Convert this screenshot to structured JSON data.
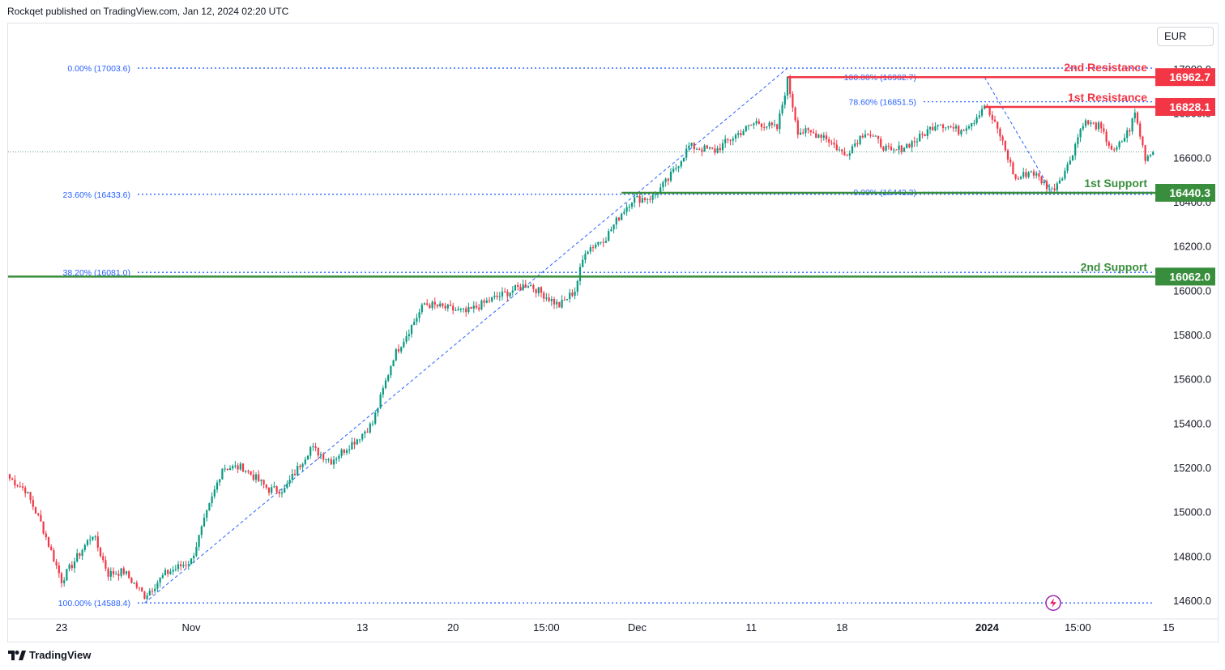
{
  "header": {
    "text": "Rockqet published on TradingView.com, Jan 12, 2024 02:20 UTC"
  },
  "currency_button": {
    "label": "EUR"
  },
  "footer": {
    "brand": "TradingView",
    "logo_icon": "tradingview-logo-icon"
  },
  "chart_data": {
    "type": "candlestick",
    "symbol_currency": "EUR",
    "ylim": [
      14540,
      17080
    ],
    "y_ticks": [
      {
        "value": 14600,
        "label": "14600.0"
      },
      {
        "value": 14800,
        "label": "14800.0"
      },
      {
        "value": 15000,
        "label": "15000.0"
      },
      {
        "value": 15200,
        "label": "15200.0"
      },
      {
        "value": 15400,
        "label": "15400.0"
      },
      {
        "value": 15600,
        "label": "15600.0"
      },
      {
        "value": 15800,
        "label": "15800.0"
      },
      {
        "value": 16000,
        "label": "16000.0"
      },
      {
        "value": 16200,
        "label": "16200.0"
      },
      {
        "value": 16400,
        "label": "16400.0"
      },
      {
        "value": 16600,
        "label": "16600.0"
      },
      {
        "value": 16800,
        "label": "16800.0"
      },
      {
        "value": 17000,
        "label": "17000.0"
      }
    ],
    "x_ticks": [
      {
        "label": "23",
        "bar": 20,
        "bold": false
      },
      {
        "label": "Nov",
        "bar": 70,
        "bold": false
      },
      {
        "label": "13",
        "bar": 136,
        "bold": false
      },
      {
        "label": "20",
        "bar": 171,
        "bold": false
      },
      {
        "label": "15:00",
        "bar": 207,
        "bold": false
      },
      {
        "label": "Dec",
        "bar": 242,
        "bold": false
      },
      {
        "label": "11",
        "bar": 286,
        "bold": false
      },
      {
        "label": "18",
        "bar": 321,
        "bold": false
      },
      {
        "label": "2024",
        "bar": 377,
        "bold": true
      },
      {
        "label": "15:00",
        "bar": 412,
        "bold": false
      },
      {
        "label": "15",
        "bar": 447,
        "bold": false
      }
    ],
    "anchor_points": [
      {
        "bar": 0,
        "price": 15150
      },
      {
        "bar": 6,
        "price": 15100
      },
      {
        "bar": 12,
        "price": 14950
      },
      {
        "bar": 20,
        "price": 14690
      },
      {
        "bar": 24,
        "price": 14760
      },
      {
        "bar": 32,
        "price": 14900
      },
      {
        "bar": 38,
        "price": 14720
      },
      {
        "bar": 44,
        "price": 14730
      },
      {
        "bar": 52,
        "price": 14620
      },
      {
        "bar": 60,
        "price": 14720
      },
      {
        "bar": 70,
        "price": 14780
      },
      {
        "bar": 76,
        "price": 14990
      },
      {
        "bar": 82,
        "price": 15200
      },
      {
        "bar": 90,
        "price": 15200
      },
      {
        "bar": 100,
        "price": 15100
      },
      {
        "bar": 106,
        "price": 15100
      },
      {
        "bar": 116,
        "price": 15290
      },
      {
        "bar": 124,
        "price": 15230
      },
      {
        "bar": 134,
        "price": 15330
      },
      {
        "bar": 140,
        "price": 15400
      },
      {
        "bar": 148,
        "price": 15700
      },
      {
        "bar": 160,
        "price": 15940
      },
      {
        "bar": 176,
        "price": 15900
      },
      {
        "bar": 186,
        "price": 15960
      },
      {
        "bar": 200,
        "price": 16030
      },
      {
        "bar": 212,
        "price": 15930
      },
      {
        "bar": 218,
        "price": 16000
      },
      {
        "bar": 222,
        "price": 16180
      },
      {
        "bar": 230,
        "price": 16240
      },
      {
        "bar": 236,
        "price": 16350
      },
      {
        "bar": 240,
        "price": 16410
      },
      {
        "bar": 248,
        "price": 16420
      },
      {
        "bar": 254,
        "price": 16500
      },
      {
        "bar": 262,
        "price": 16650
      },
      {
        "bar": 272,
        "price": 16630
      },
      {
        "bar": 280,
        "price": 16700
      },
      {
        "bar": 288,
        "price": 16760
      },
      {
        "bar": 296,
        "price": 16730
      },
      {
        "bar": 300,
        "price": 16950
      },
      {
        "bar": 304,
        "price": 16720
      },
      {
        "bar": 314,
        "price": 16700
      },
      {
        "bar": 322,
        "price": 16610
      },
      {
        "bar": 330,
        "price": 16720
      },
      {
        "bar": 340,
        "price": 16620
      },
      {
        "bar": 350,
        "price": 16680
      },
      {
        "bar": 358,
        "price": 16760
      },
      {
        "bar": 366,
        "price": 16720
      },
      {
        "bar": 372,
        "price": 16770
      },
      {
        "bar": 376,
        "price": 16840
      },
      {
        "bar": 382,
        "price": 16700
      },
      {
        "bar": 388,
        "price": 16500
      },
      {
        "bar": 394,
        "price": 16540
      },
      {
        "bar": 402,
        "price": 16450
      },
      {
        "bar": 408,
        "price": 16560
      },
      {
        "bar": 414,
        "price": 16760
      },
      {
        "bar": 420,
        "price": 16740
      },
      {
        "bar": 426,
        "price": 16620
      },
      {
        "bar": 432,
        "price": 16730
      },
      {
        "bar": 434,
        "price": 16800
      },
      {
        "bar": 438,
        "price": 16600
      },
      {
        "bar": 441,
        "price": 16625
      }
    ],
    "last_price": 16625,
    "fib_levels": [
      {
        "label": "0.00% (17003.6)",
        "value": 17003.6
      },
      {
        "label": "23.60% (16433.6)",
        "value": 16433.6
      },
      {
        "label": "38.20% (16081.0)",
        "value": 16081.0
      },
      {
        "label": "100.00% (14588.4)",
        "value": 14588.4
      }
    ],
    "fib_levels_2": [
      {
        "label": "100.00% (16962.7)",
        "value": 16962.7
      },
      {
        "label": "78.60% (16851.5)",
        "value": 16851.5
      },
      {
        "label": "0.00% (16443.3)",
        "value": 16443.3
      }
    ],
    "levels": [
      {
        "name": "2nd Resistance",
        "value": 16962.7,
        "label": "16962.7",
        "color": "#f23645"
      },
      {
        "name": "1st Resistance",
        "value": 16828.1,
        "label": "16828.1",
        "color": "#f23645"
      },
      {
        "name": "1st Support",
        "value": 16440.3,
        "label": "16440.3",
        "color": "#388e3c"
      },
      {
        "name": "2nd Support",
        "value": 16062.0,
        "label": "16062.0",
        "color": "#388e3c"
      }
    ],
    "colors": {
      "up": "#089981",
      "down": "#f23645",
      "fib": "#2962ff",
      "support": "#388e3c",
      "resistance": "#f23645"
    }
  }
}
